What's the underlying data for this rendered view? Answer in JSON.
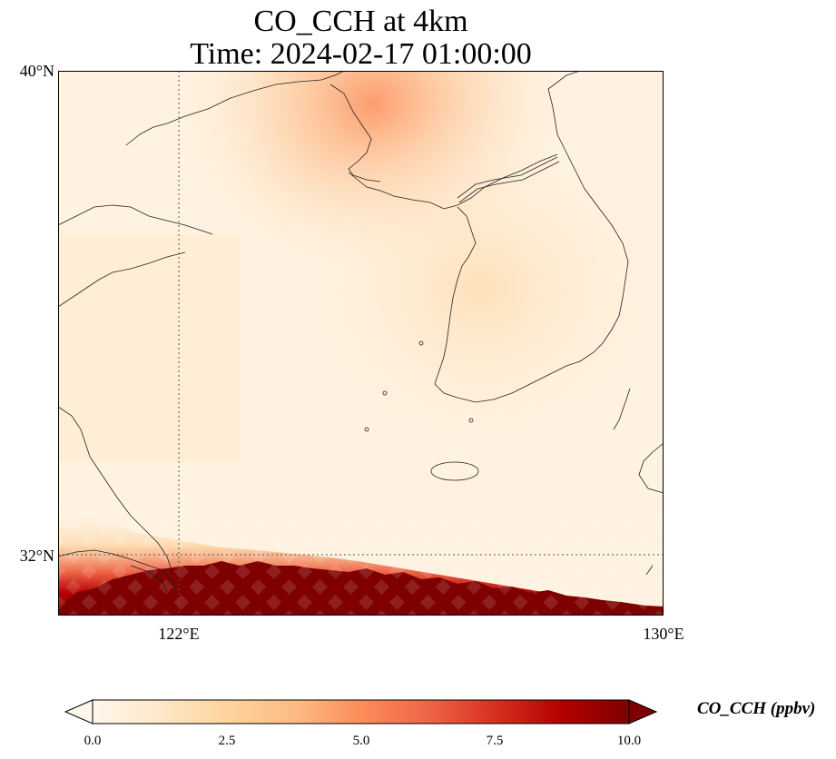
{
  "title_line1": "CO_CCH at 4km",
  "title_line2": "Time: 2024-02-17 01:00:00",
  "axes": {
    "lat_ticks": [
      "40°N",
      "32°N"
    ],
    "lon_ticks": [
      "122°E",
      "130°E"
    ]
  },
  "colorbar": {
    "label": "CO_CCH (ppbv)",
    "ticks": [
      "0.0",
      "2.5",
      "5.0",
      "7.5",
      "10.0"
    ],
    "range": [
      0,
      10
    ],
    "colormap": "OrRd",
    "extend": "both"
  },
  "map": {
    "lon_range": [
      120,
      130
    ],
    "lat_range": [
      31,
      40
    ],
    "gridlines": "dotted"
  },
  "colors": {
    "low": "#fff7ec",
    "mid": "#fdd49e",
    "high": "#7f0000"
  }
}
